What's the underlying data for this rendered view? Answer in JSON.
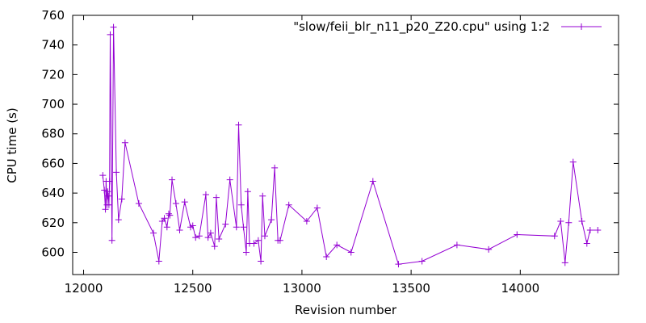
{
  "chart_data": {
    "type": "line",
    "xlabel": "Revision number",
    "ylabel": "CPU time (s)",
    "xlim": [
      11950,
      14450
    ],
    "ylim": [
      585,
      760
    ],
    "xticks": [
      12000,
      12500,
      13000,
      13500,
      14000
    ],
    "yticks": [
      600,
      620,
      640,
      660,
      680,
      700,
      720,
      740,
      760
    ],
    "grid": false,
    "legend_position": "top-right",
    "series": [
      {
        "name": "\"slow/feii_blr_n11_p20_Z20.cpu\" using 1:2",
        "color": "#9400d3",
        "marker": "plus",
        "x": [
          12088,
          12095,
          12100,
          12103,
          12107,
          12110,
          12113,
          12116,
          12119,
          12122,
          12130,
          12137,
          12150,
          12160,
          12175,
          12190,
          12253,
          12320,
          12345,
          12360,
          12370,
          12382,
          12390,
          12395,
          12405,
          12423,
          12440,
          12463,
          12490,
          12500,
          12513,
          12530,
          12560,
          12570,
          12582,
          12600,
          12608,
          12620,
          12650,
          12670,
          12700,
          12710,
          12722,
          12732,
          12745,
          12752,
          12760,
          12780,
          12800,
          12812,
          12820,
          12830,
          12860,
          12875,
          12890,
          12900,
          12940,
          13022,
          13070,
          13112,
          13160,
          13225,
          13325,
          13442,
          13550,
          13710,
          13855,
          13985,
          14157,
          14185,
          14205,
          14222,
          14242,
          14282,
          14305,
          14320,
          14355
        ],
        "y": [
          652,
          642,
          629,
          648,
          632,
          641,
          638,
          632,
          648,
          747,
          608,
          752,
          654,
          622,
          636,
          674,
          633,
          613,
          594,
          621,
          623,
          617,
          626,
          625,
          649,
          633,
          615,
          634,
          617,
          618,
          610,
          611,
          639,
          610,
          613,
          604,
          637,
          609,
          619,
          649,
          617,
          686,
          632,
          617,
          600,
          641,
          606,
          606,
          608,
          594,
          638,
          611,
          622,
          657,
          608,
          608,
          632,
          621,
          630,
          597,
          605,
          600,
          648,
          592,
          594,
          605,
          602,
          612,
          611,
          621,
          593,
          620,
          661,
          621,
          606,
          615,
          615
        ]
      }
    ]
  }
}
